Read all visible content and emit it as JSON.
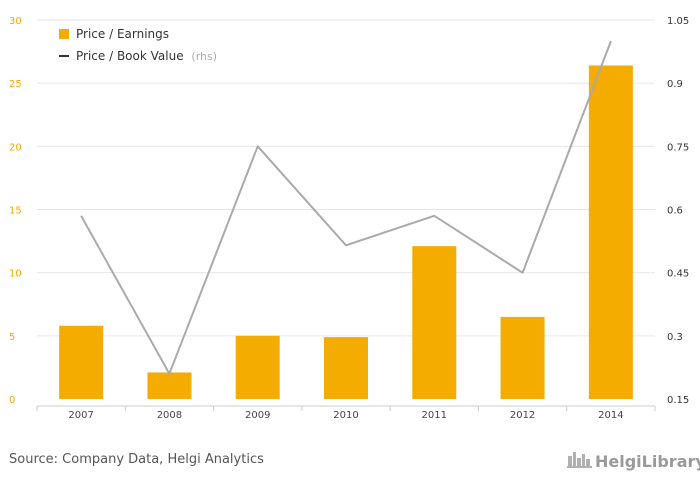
{
  "chart_data": {
    "type": "bar",
    "categories": [
      "2007",
      "2008",
      "2009",
      "2010",
      "2011",
      "2012",
      "2014"
    ],
    "series": [
      {
        "name": "Price / Earnings",
        "type": "bar",
        "axis": "left",
        "values": [
          5.8,
          2.1,
          5.0,
          4.9,
          12.1,
          6.5,
          26.4
        ],
        "color": "#f5ac00"
      },
      {
        "name": "Price / Book Value",
        "name_suffix": "(rhs)",
        "type": "line",
        "axis": "right",
        "values": [
          0.585,
          0.21,
          0.75,
          0.515,
          0.585,
          0.45,
          1.0
        ],
        "color": "#aaaaaa",
        "legend_color": "#333333"
      }
    ],
    "y_left": {
      "ylim": [
        0,
        30
      ],
      "ticks": [
        "0",
        "5",
        "10",
        "15",
        "20",
        "25",
        "30"
      ],
      "color": "#f5a800"
    },
    "y_right": {
      "ylim": [
        0.15,
        1.05
      ],
      "ticks": [
        "0.15",
        "0.3",
        "0.45",
        "0.6",
        "0.75",
        "0.9",
        "1.05"
      ],
      "color": "#333333"
    },
    "grid": true,
    "legend_position": "top-left",
    "source": "Source: Company Data, Helgi Analytics"
  },
  "brand": {
    "name": "HelgiLibrary",
    "logo_icon": "helgi-city-icon",
    "color": "#9a9a9a"
  },
  "colors": {
    "grid": "#e6e6e6",
    "axis": "#cccccc"
  }
}
